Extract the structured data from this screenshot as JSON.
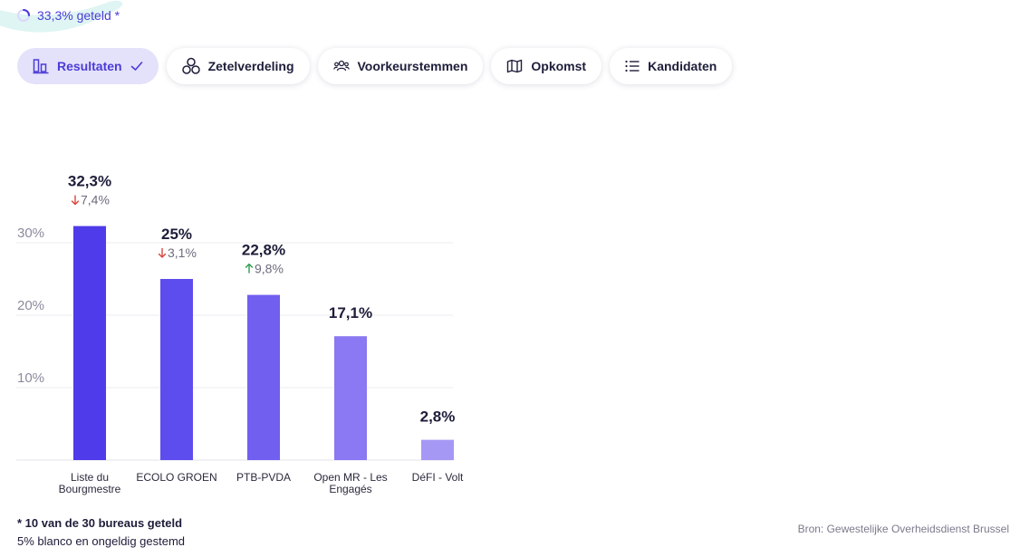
{
  "progress": {
    "text": "33,3% geteld *"
  },
  "tabs": [
    {
      "label": "Resultaten",
      "icon": "bar-chart-icon",
      "active": true
    },
    {
      "label": "Zetelverdeling",
      "icon": "circles-icon",
      "active": false
    },
    {
      "label": "Voorkeurstemmen",
      "icon": "people-icon",
      "active": false
    },
    {
      "label": "Opkomst",
      "icon": "map-icon",
      "active": false
    },
    {
      "label": "Kandidaten",
      "icon": "list-icon",
      "active": false
    }
  ],
  "chart_data": {
    "type": "bar",
    "categories": [
      "Liste du Bourgmestre",
      "ECOLO GROEN",
      "PTB-PVDA",
      "Open MR - Les Engagés",
      "DéFI - Volt"
    ],
    "category_lines": [
      [
        "Liste du",
        "Bourgmestre"
      ],
      [
        "ECOLO GROEN"
      ],
      [
        "PTB-PVDA"
      ],
      [
        "Open MR - Les",
        "Engagés"
      ],
      [
        "DéFI - Volt"
      ]
    ],
    "values": [
      32.3,
      25,
      22.8,
      17.1,
      2.8
    ],
    "value_labels": [
      "32,3%",
      "25%",
      "22,8%",
      "17,1%",
      "2,8%"
    ],
    "changes": [
      {
        "direction": "down",
        "label": "7,4%"
      },
      {
        "direction": "down",
        "label": "3,1%"
      },
      {
        "direction": "up",
        "label": "9,8%"
      },
      null,
      null
    ],
    "yticks": [
      10,
      20,
      30
    ],
    "ytick_labels": [
      "10%",
      "20%",
      "30%"
    ],
    "ylim": [
      0,
      30
    ],
    "grid": true,
    "title": "",
    "xlabel": "",
    "ylabel": "",
    "colors": [
      "#4f3be9",
      "#5e4dee",
      "#715ff0",
      "#8a79f2",
      "#a598f5"
    ],
    "up_color": "#2e9e4d",
    "down_color": "#d9463e"
  },
  "footnote": {
    "counted": "* 10 van de 30 bureaus geteld",
    "blank": "5% blanco en ongeldig gestemd"
  },
  "source": "Bron: Gewestelijke Overheidsdienst Brussel"
}
